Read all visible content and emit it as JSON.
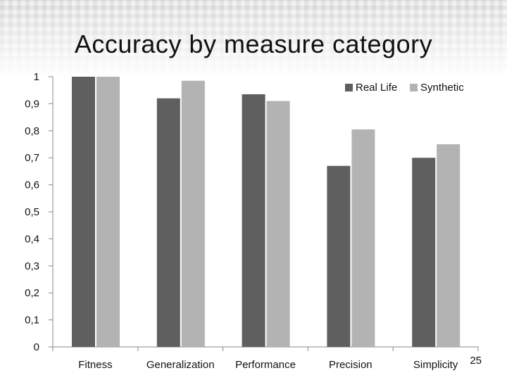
{
  "slide": {
    "title": "Accuracy by measure category",
    "page_number": "25"
  },
  "colors": {
    "real_life": "#5f5f5f",
    "synthetic": "#b3b3b3",
    "axis": "#888888"
  },
  "chart_data": {
    "type": "bar",
    "title": "Accuracy by measure category",
    "xlabel": "",
    "ylabel": "",
    "categories": [
      "Fitness",
      "Generalization",
      "Performance",
      "Precision",
      "Simplicity"
    ],
    "series": [
      {
        "name": "Real Life",
        "values": [
          1.0,
          0.92,
          0.935,
          0.67,
          0.7
        ]
      },
      {
        "name": "Synthetic",
        "values": [
          1.0,
          0.985,
          0.91,
          0.805,
          0.75
        ]
      }
    ],
    "ylim": [
      0,
      1
    ],
    "yticks": [
      {
        "value": 0,
        "label": "0"
      },
      {
        "value": 0.1,
        "label": "0,1"
      },
      {
        "value": 0.2,
        "label": "0,2"
      },
      {
        "value": 0.3,
        "label": "0,3"
      },
      {
        "value": 0.4,
        "label": "0,4"
      },
      {
        "value": 0.5,
        "label": "0,5"
      },
      {
        "value": 0.6,
        "label": "0,6"
      },
      {
        "value": 0.7,
        "label": "0,7"
      },
      {
        "value": 0.8,
        "label": "0,8"
      },
      {
        "value": 0.9,
        "label": "0,9"
      },
      {
        "value": 1,
        "label": "1"
      }
    ],
    "grid": false,
    "legend_position": "top-right"
  }
}
